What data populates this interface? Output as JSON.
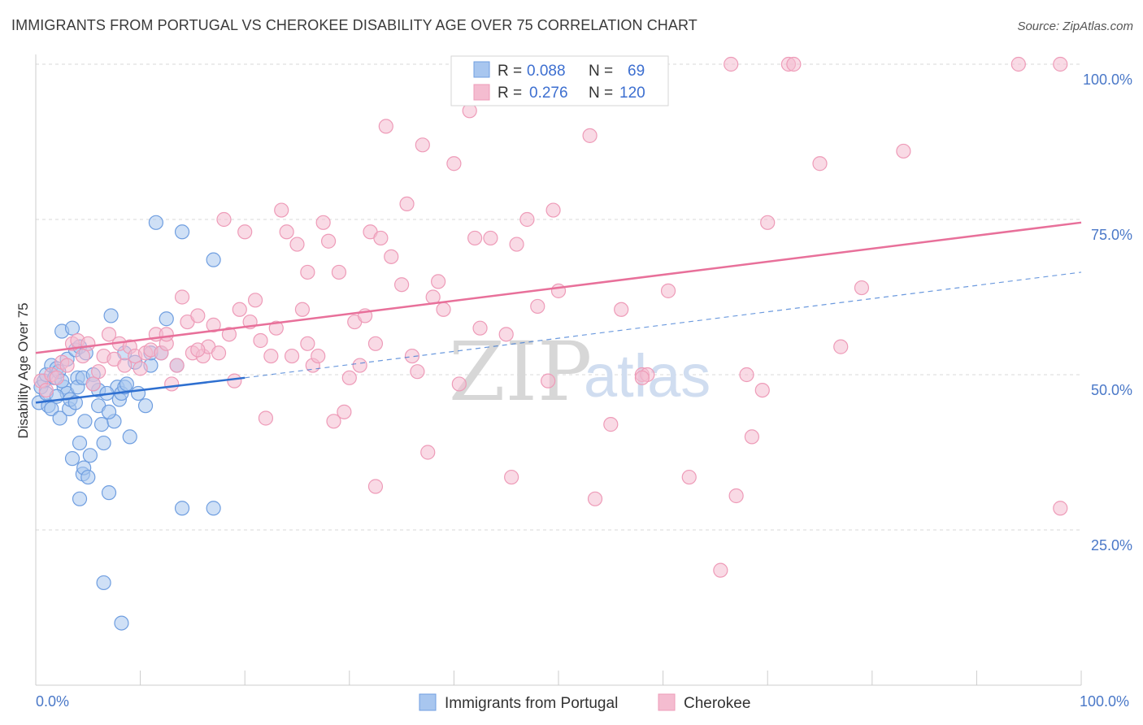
{
  "header": {
    "title": "IMMIGRANTS FROM PORTUGAL VS CHEROKEE DISABILITY AGE OVER 75 CORRELATION CHART",
    "source": "Source: ZipAtlas.com"
  },
  "watermark": {
    "zip": "ZIP",
    "atlas": "atlas"
  },
  "colors": {
    "blue_fill": "#a8c6ef",
    "blue_stroke": "#6f9ee0",
    "blue_line": "#2e6fd0",
    "pink_fill": "#f4bcd0",
    "pink_stroke": "#ee9bb8",
    "pink_line": "#e8709a",
    "grid": "#d9d9d9",
    "accent_text": "#4a78c8"
  },
  "legend": {
    "r_label": "R =",
    "n_label": "N =",
    "series": [
      {
        "name": "Immigrants from Portugal",
        "r": "0.088",
        "n": "69"
      },
      {
        "name": "Cherokee",
        "r": "0.276",
        "n": "120"
      }
    ]
  },
  "chart_data": {
    "type": "scatter",
    "title": "IMMIGRANTS FROM PORTUGAL VS CHEROKEE DISABILITY AGE OVER 75 CORRELATION CHART",
    "xlabel": "",
    "ylabel": "Disability Age Over 75",
    "xlim": [
      0,
      100
    ],
    "ylim": [
      0,
      100
    ],
    "x_tick_labels": [
      "0.0%",
      "100.0%"
    ],
    "y_ticks": [
      25,
      50,
      75,
      100
    ],
    "y_tick_labels": [
      "25.0%",
      "50.0%",
      "75.0%",
      "100.0%"
    ],
    "grid": true,
    "series": [
      {
        "name": "Immigrants from Portugal",
        "r": 0.088,
        "n": 69,
        "trend_solid": [
          [
            0,
            45.5
          ],
          [
            20,
            49.5
          ]
        ],
        "trend_dashed": [
          [
            20,
            49.5
          ],
          [
            100,
            66.5
          ]
        ],
        "points": [
          [
            0.3,
            45.5
          ],
          [
            0.5,
            48.0
          ],
          [
            0.8,
            49.0
          ],
          [
            1.0,
            50.0
          ],
          [
            1.2,
            45.0
          ],
          [
            1.5,
            44.5
          ],
          [
            1.5,
            51.5
          ],
          [
            1.8,
            49.5
          ],
          [
            2.0,
            51.0
          ],
          [
            2.2,
            50.5
          ],
          [
            2.3,
            43.0
          ],
          [
            2.5,
            57.0
          ],
          [
            2.7,
            48.0
          ],
          [
            3.0,
            52.5
          ],
          [
            3.0,
            47.0
          ],
          [
            3.2,
            44.5
          ],
          [
            3.3,
            46.0
          ],
          [
            3.5,
            57.5
          ],
          [
            3.5,
            36.5
          ],
          [
            3.8,
            54.0
          ],
          [
            4.0,
            49.5
          ],
          [
            4.0,
            48.0
          ],
          [
            4.2,
            54.5
          ],
          [
            4.2,
            39.0
          ],
          [
            4.2,
            30.0
          ],
          [
            4.5,
            34.0
          ],
          [
            4.5,
            49.5
          ],
          [
            4.6,
            35.0
          ],
          [
            4.7,
            42.5
          ],
          [
            4.8,
            53.5
          ],
          [
            5.0,
            33.5
          ],
          [
            5.2,
            37.0
          ],
          [
            5.5,
            50.0
          ],
          [
            6.0,
            47.5
          ],
          [
            6.0,
            45.0
          ],
          [
            6.3,
            42.0
          ],
          [
            6.5,
            39.0
          ],
          [
            6.5,
            16.5
          ],
          [
            7.0,
            31.0
          ],
          [
            7.2,
            59.5
          ],
          [
            7.5,
            42.5
          ],
          [
            7.8,
            48.0
          ],
          [
            8.0,
            46.0
          ],
          [
            8.2,
            47.0
          ],
          [
            8.2,
            10.0
          ],
          [
            8.5,
            48.0
          ],
          [
            8.5,
            53.5
          ],
          [
            8.7,
            48.5
          ],
          [
            9.0,
            40.0
          ],
          [
            9.5,
            52.0
          ],
          [
            10.5,
            45.0
          ],
          [
            11.0,
            51.5
          ],
          [
            11.0,
            53.5
          ],
          [
            11.5,
            74.5
          ],
          [
            12.0,
            53.5
          ],
          [
            12.5,
            59.0
          ],
          [
            13.5,
            51.5
          ],
          [
            14.0,
            73.0
          ],
          [
            14.0,
            28.5
          ],
          [
            17.0,
            68.5
          ],
          [
            17.0,
            28.5
          ],
          [
            1.0,
            47.0
          ],
          [
            2.0,
            46.5
          ],
          [
            2.5,
            49.0
          ],
          [
            3.8,
            45.5
          ],
          [
            5.5,
            48.5
          ],
          [
            6.8,
            47.0
          ],
          [
            9.8,
            47.0
          ],
          [
            7.0,
            44.0
          ]
        ]
      },
      {
        "name": "Cherokee",
        "r": 0.276,
        "n": 120,
        "trend_solid": [
          [
            0,
            53.5
          ],
          [
            100,
            74.5
          ]
        ],
        "points": [
          [
            0.5,
            49.0
          ],
          [
            1.0,
            47.5
          ],
          [
            1.5,
            50.0
          ],
          [
            2.0,
            49.5
          ],
          [
            2.5,
            52.0
          ],
          [
            3.0,
            51.5
          ],
          [
            3.5,
            55.0
          ],
          [
            4.0,
            55.5
          ],
          [
            4.5,
            53.0
          ],
          [
            5.0,
            55.0
          ],
          [
            5.5,
            48.5
          ],
          [
            6.0,
            50.5
          ],
          [
            6.5,
            53.0
          ],
          [
            7.0,
            56.5
          ],
          [
            7.5,
            52.5
          ],
          [
            8.0,
            55.0
          ],
          [
            8.5,
            51.5
          ],
          [
            9.0,
            54.5
          ],
          [
            9.5,
            53.0
          ],
          [
            10.0,
            51.0
          ],
          [
            10.5,
            53.5
          ],
          [
            11.0,
            54.0
          ],
          [
            11.5,
            56.5
          ],
          [
            12.0,
            53.5
          ],
          [
            12.5,
            55.0
          ],
          [
            13.0,
            48.5
          ],
          [
            13.5,
            51.5
          ],
          [
            14.0,
            62.5
          ],
          [
            14.5,
            58.5
          ],
          [
            15.0,
            53.5
          ],
          [
            15.5,
            59.5
          ],
          [
            16.0,
            53.0
          ],
          [
            16.5,
            54.5
          ],
          [
            17.0,
            58.0
          ],
          [
            17.5,
            53.5
          ],
          [
            18.0,
            75.0
          ],
          [
            18.5,
            56.5
          ],
          [
            19.0,
            49.0
          ],
          [
            19.5,
            60.5
          ],
          [
            20.0,
            73.0
          ],
          [
            20.5,
            58.5
          ],
          [
            21.0,
            62.0
          ],
          [
            21.5,
            55.5
          ],
          [
            22.0,
            43.0
          ],
          [
            22.5,
            53.0
          ],
          [
            23.0,
            57.5
          ],
          [
            23.5,
            76.5
          ],
          [
            24.0,
            73.0
          ],
          [
            24.5,
            53.0
          ],
          [
            25.0,
            71.0
          ],
          [
            25.5,
            60.5
          ],
          [
            26.0,
            66.5
          ],
          [
            26.5,
            51.5
          ],
          [
            27.0,
            53.0
          ],
          [
            27.5,
            74.5
          ],
          [
            28.0,
            71.5
          ],
          [
            28.5,
            42.5
          ],
          [
            29.0,
            66.5
          ],
          [
            29.5,
            44.0
          ],
          [
            30.0,
            49.5
          ],
          [
            30.5,
            58.5
          ],
          [
            31.0,
            51.5
          ],
          [
            31.5,
            59.5
          ],
          [
            32.0,
            73.0
          ],
          [
            32.5,
            32.0
          ],
          [
            33.0,
            72.0
          ],
          [
            33.5,
            90.0
          ],
          [
            34.0,
            69.0
          ],
          [
            35.0,
            64.5
          ],
          [
            35.5,
            77.5
          ],
          [
            36.0,
            53.0
          ],
          [
            36.5,
            50.5
          ],
          [
            37.0,
            87.0
          ],
          [
            37.5,
            37.5
          ],
          [
            38.0,
            62.5
          ],
          [
            38.5,
            65.0
          ],
          [
            39.0,
            60.5
          ],
          [
            40.0,
            84.0
          ],
          [
            40.5,
            48.5
          ],
          [
            41.5,
            92.5
          ],
          [
            42.0,
            72.0
          ],
          [
            42.5,
            57.5
          ],
          [
            43.5,
            72.0
          ],
          [
            45.0,
            56.5
          ],
          [
            45.5,
            33.5
          ],
          [
            46.0,
            71.0
          ],
          [
            47.0,
            75.0
          ],
          [
            48.0,
            61.0
          ],
          [
            49.5,
            76.5
          ],
          [
            50.0,
            63.5
          ],
          [
            53.0,
            88.5
          ],
          [
            53.5,
            30.0
          ],
          [
            55.0,
            42.0
          ],
          [
            56.0,
            60.5
          ],
          [
            58.0,
            50.0
          ],
          [
            58.5,
            50.0
          ],
          [
            60.5,
            63.5
          ],
          [
            62.5,
            33.5
          ],
          [
            65.5,
            18.5
          ],
          [
            67.0,
            30.5
          ],
          [
            68.0,
            50.0
          ],
          [
            68.5,
            40.0
          ],
          [
            69.5,
            47.5
          ],
          [
            70.0,
            74.5
          ],
          [
            75.0,
            84.0
          ],
          [
            77.0,
            54.5
          ],
          [
            79.0,
            64.0
          ],
          [
            83.0,
            86.0
          ],
          [
            98.0,
            28.5
          ],
          [
            66.5,
            100.0
          ],
          [
            72.0,
            100.0
          ],
          [
            72.5,
            100.0
          ],
          [
            94.0,
            100.0
          ],
          [
            98.0,
            100.0
          ],
          [
            32.5,
            55.0
          ],
          [
            58.0,
            49.5
          ],
          [
            49.0,
            49.0
          ],
          [
            12.5,
            56.5
          ],
          [
            26.0,
            55.0
          ],
          [
            15.5,
            54.0
          ]
        ]
      }
    ]
  }
}
